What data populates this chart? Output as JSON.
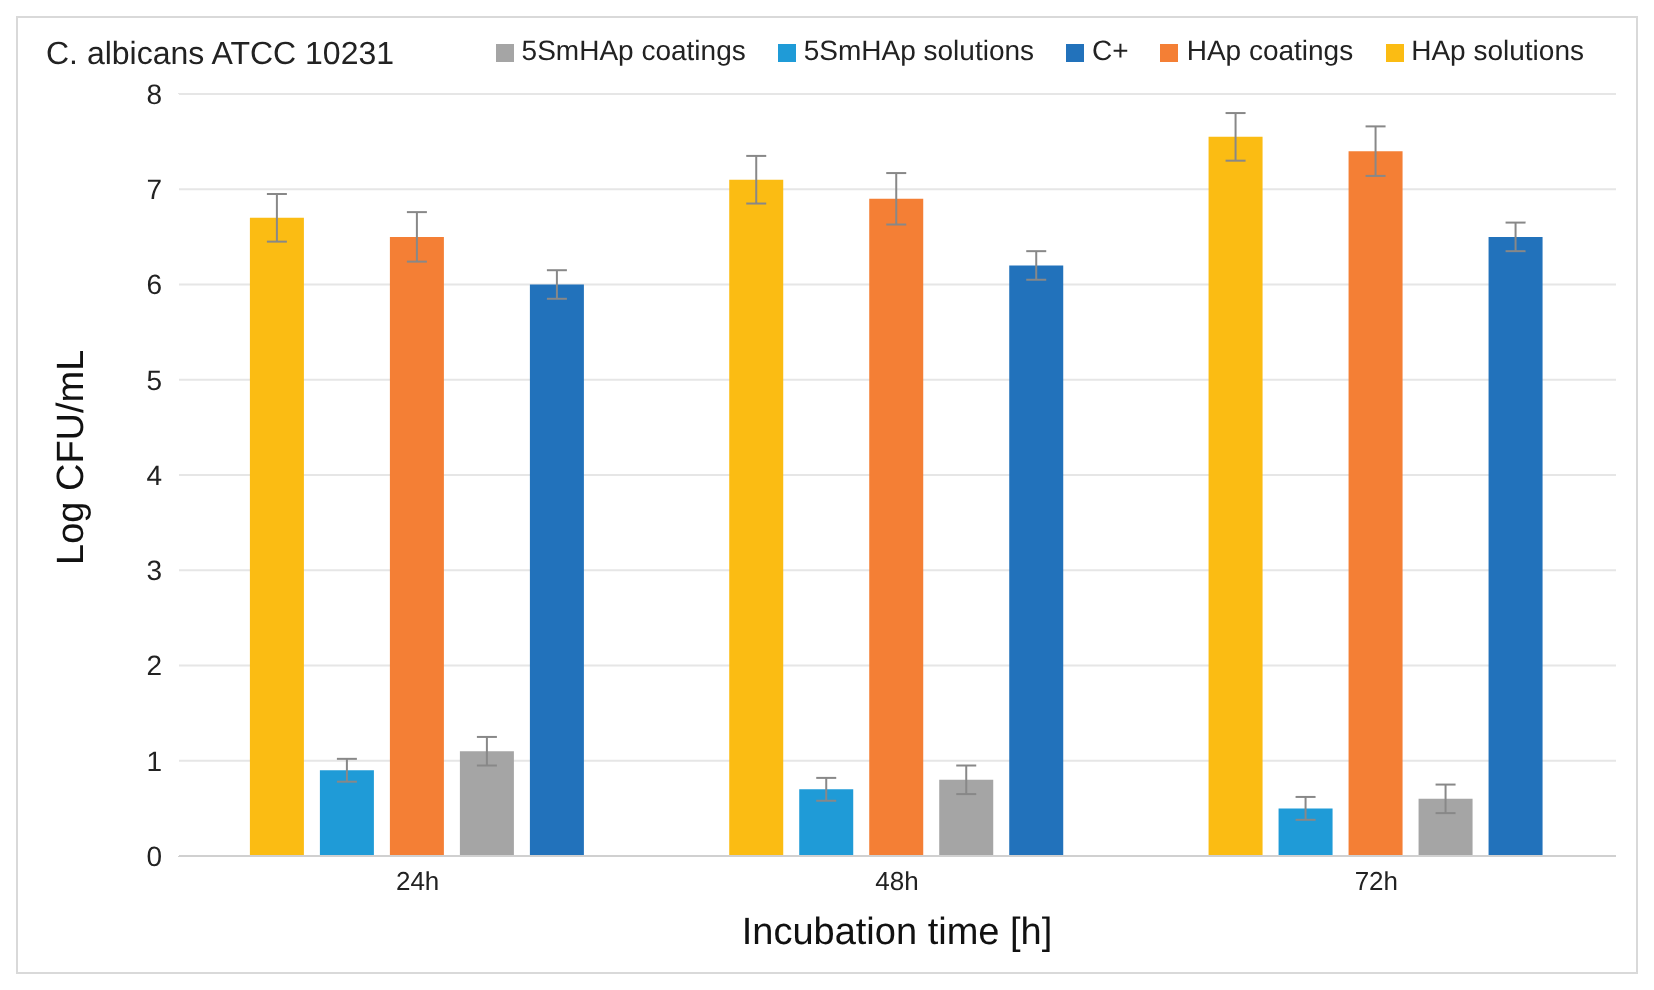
{
  "chart_data": {
    "type": "bar",
    "title": "C. albicans ATCC 10231",
    "xlabel": "Incubation time [h]",
    "ylabel": "Log CFU/mL",
    "categories": [
      "24h",
      "48h",
      "72h"
    ],
    "series": [
      {
        "name": "HAp solutions",
        "color": "#fbbc13",
        "values": [
          6.7,
          7.1,
          7.55
        ],
        "errors": [
          0.25,
          0.25,
          0.25
        ]
      },
      {
        "name": "5SmHAp solutions",
        "color": "#1f9bd7",
        "values": [
          0.9,
          0.7,
          0.5
        ],
        "errors": [
          0.12,
          0.12,
          0.12
        ]
      },
      {
        "name": "HAp coatings",
        "color": "#f47f35",
        "values": [
          6.5,
          6.9,
          7.4
        ],
        "errors": [
          0.26,
          0.27,
          0.26
        ]
      },
      {
        "name": "5SmHAp coatings",
        "color": "#a5a5a5",
        "values": [
          1.1,
          0.8,
          0.6
        ],
        "errors": [
          0.15,
          0.15,
          0.15
        ]
      },
      {
        "name": "C+",
        "color": "#2272bb",
        "values": [
          6.0,
          6.2,
          6.5
        ],
        "errors": [
          0.15,
          0.15,
          0.15
        ]
      }
    ],
    "ylim": [
      0,
      8
    ],
    "yticks": [
      0,
      1,
      2,
      3,
      4,
      5,
      6,
      7,
      8
    ],
    "grid": "y",
    "legend": "top right"
  }
}
